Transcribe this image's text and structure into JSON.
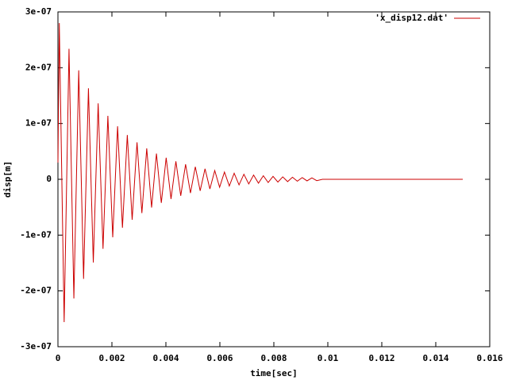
{
  "chart_data": {
    "type": "line",
    "xlabel": "time[sec]",
    "ylabel": "disp[m]",
    "xlim": [
      0,
      0.016
    ],
    "xticks": [
      0,
      0.002,
      0.004,
      0.006,
      0.008,
      0.01,
      0.012,
      0.014,
      0.016
    ],
    "ylim": [
      -3e-07,
      3e-07
    ],
    "yticks": [
      {
        "value": -3e-07,
        "label": "-3e-07"
      },
      {
        "value": -2e-07,
        "label": "-2e-07"
      },
      {
        "value": -1e-07,
        "label": "-1e-07"
      },
      0,
      {
        "value": 1e-07,
        "label": "1e-07"
      },
      {
        "value": 2e-07,
        "label": "2e-07"
      },
      {
        "value": 3e-07,
        "label": "3e-07"
      }
    ],
    "grid": false,
    "legend": "top-right",
    "x": [
      0,
      5e-05,
      0.00023,
      0.00041,
      0.00059,
      0.00077,
      0.00095,
      0.00113,
      0.00131,
      0.00149,
      0.00167,
      0.00185,
      0.00203,
      0.00221,
      0.00239,
      0.00257,
      0.00275,
      0.00293,
      0.00311,
      0.00329,
      0.00347,
      0.00365,
      0.00383,
      0.00401,
      0.00419,
      0.00437,
      0.00455,
      0.00473,
      0.00491,
      0.00509,
      0.00527,
      0.00545,
      0.00563,
      0.00581,
      0.00599,
      0.00617,
      0.00635,
      0.00653,
      0.00671,
      0.00689,
      0.00707,
      0.00725,
      0.00743,
      0.00761,
      0.00779,
      0.00797,
      0.00815,
      0.00833,
      0.00851,
      0.00869,
      0.00887,
      0.00905,
      0.00923,
      0.00941,
      0.00959,
      0.0098,
      0.015
    ],
    "series": [
      {
        "name": "'x_disp12.dat'",
        "color": "#cc0000",
        "values": [
          3e-08,
          2.8e-07,
          -2.559e-07,
          2.339e-07,
          -2.137e-07,
          1.953e-07,
          -1.785e-07,
          1.631e-07,
          -1.491e-07,
          1.362e-07,
          -1.245e-07,
          1.138e-07,
          -1.04e-07,
          9.5e-08,
          -8.68e-08,
          7.94e-08,
          -7.25e-08,
          6.63e-08,
          -6.06e-08,
          5.54e-08,
          -5.06e-08,
          4.62e-08,
          -4.23e-08,
          3.86e-08,
          -3.53e-08,
          3.23e-08,
          -2.95e-08,
          2.69e-08,
          -2.46e-08,
          2.25e-08,
          -2.06e-08,
          1.88e-08,
          -1.72e-08,
          1.57e-08,
          -1.43e-08,
          1.31e-08,
          -1.2e-08,
          1.09e-08,
          -1e-08,
          9.1e-09,
          -8.3e-09,
          7.6e-09,
          -7e-09,
          6.4e-09,
          -5.8e-09,
          5.3e-09,
          -4.9e-09,
          4.4e-09,
          -4.1e-09,
          3.7e-09,
          -3.4e-09,
          3.1e-09,
          -2.8e-09,
          2.6e-09,
          -2.4e-09,
          0,
          0
        ]
      }
    ]
  }
}
